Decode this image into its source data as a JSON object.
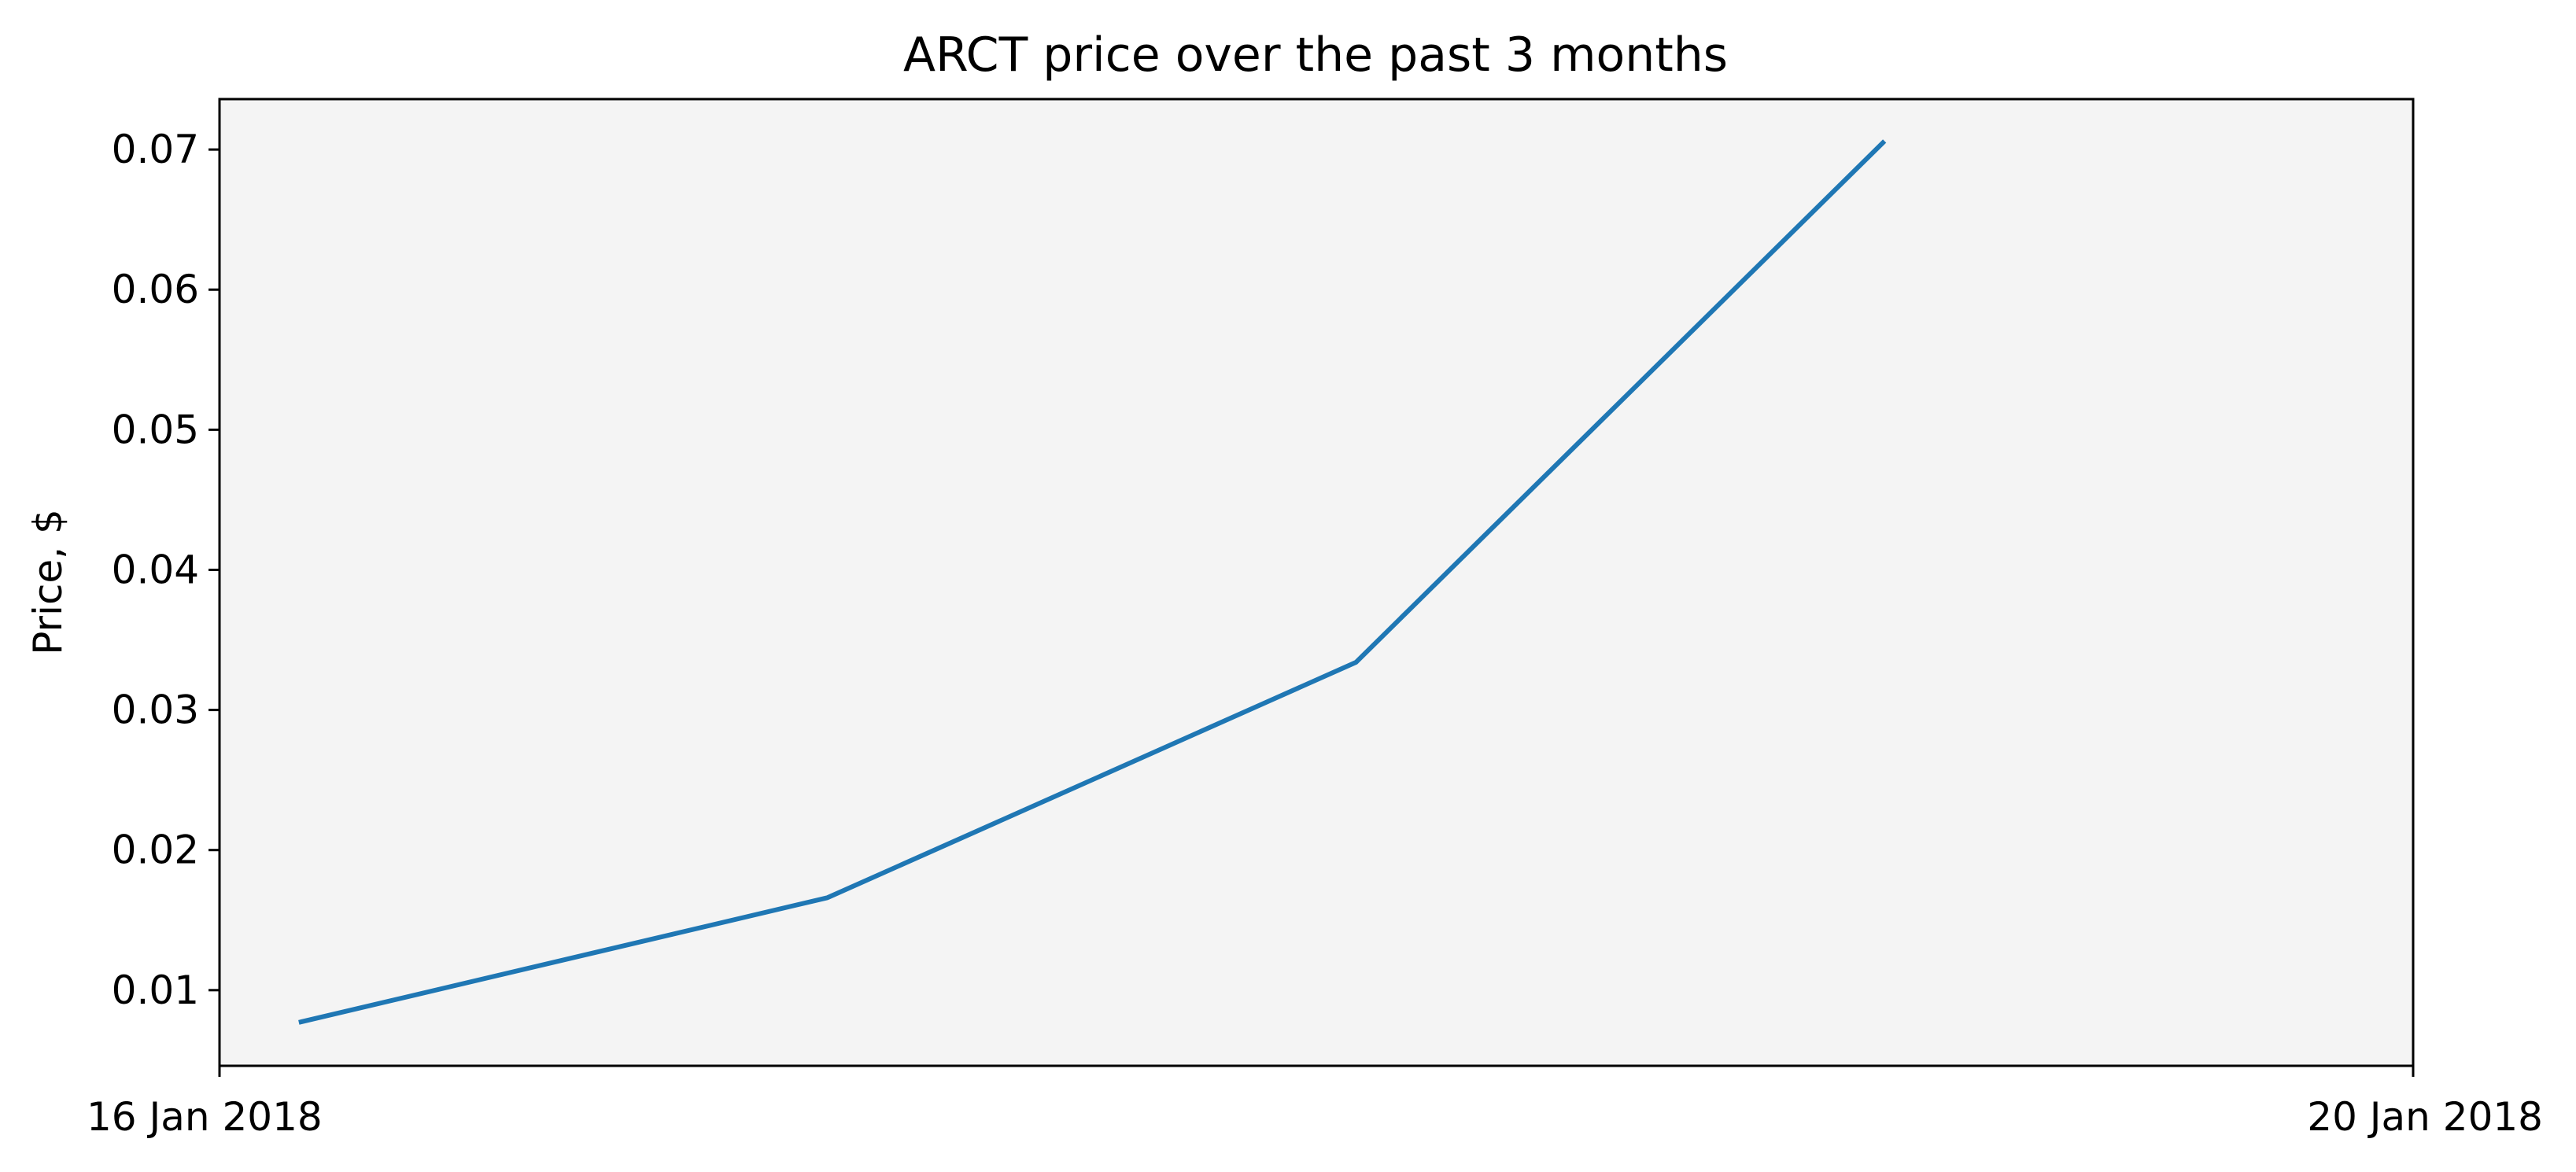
{
  "chart_data": {
    "type": "line",
    "title": "ARCT price over the past 3 months",
    "xlabel": "",
    "ylabel": "Price, $",
    "x_tick_labels": [
      "16 Jan 2018",
      "20 Jan 2018"
    ],
    "y_ticks": [
      0.01,
      0.02,
      0.03,
      0.04,
      0.05,
      0.06,
      0.07
    ],
    "y_tick_labels": [
      "0.01",
      "0.02",
      "0.03",
      "0.04",
      "0.05",
      "0.06",
      "0.07"
    ],
    "ylim": [
      0.0046,
      0.0736
    ],
    "grid": false,
    "legend": "none",
    "series": [
      {
        "color": "#1f77b4",
        "points": [
          {
            "date": "2018-01-16",
            "value": 0.0077
          },
          {
            "date": "2018-01-17",
            "value": 0.0166
          },
          {
            "date": "2018-01-18",
            "value": 0.0334
          },
          {
            "date": "2018-01-19",
            "value": 0.0706
          }
        ]
      }
    ]
  },
  "colors": {
    "plot_background": "#f4f4f4",
    "axis": "#000000",
    "line": "#1f77b4"
  }
}
